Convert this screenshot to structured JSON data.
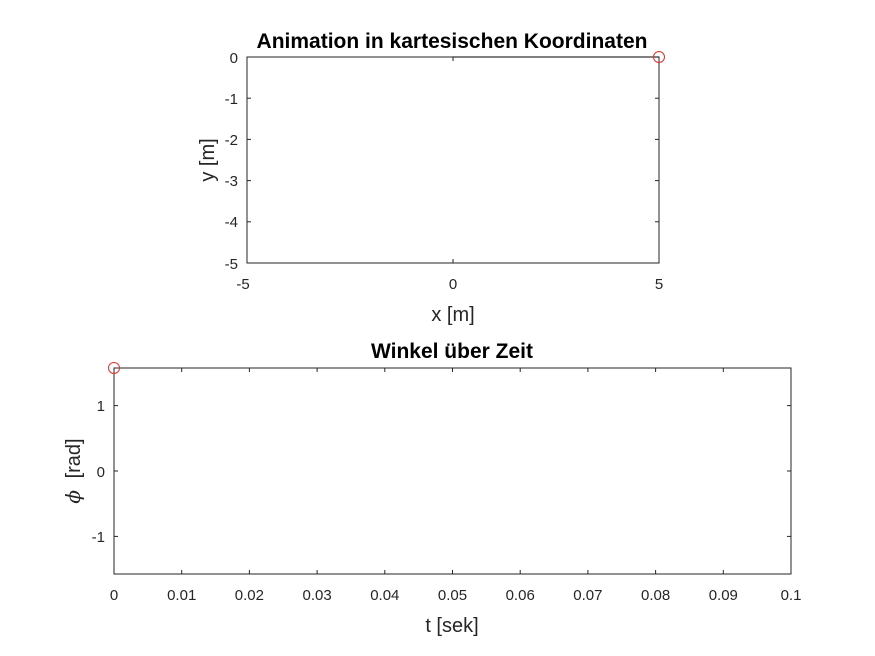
{
  "colors": {
    "marker": "#e0302c",
    "line": "#000000",
    "axis": "#262626",
    "background": "#ffffff"
  },
  "chart_data": [
    {
      "type": "line",
      "title": "Animation in kartesischen Koordinaten",
      "xlabel": "x [m]",
      "ylabel": "y [m]",
      "xlim": [
        -5,
        5
      ],
      "ylim": [
        -5,
        0
      ],
      "xticks": [
        "-5",
        "0",
        "5"
      ],
      "yticks": [
        "0",
        "-1",
        "-2",
        "-3",
        "-4",
        "-5"
      ],
      "grid": false,
      "series": [
        {
          "x": [
            0,
            5
          ],
          "y": [
            0,
            0
          ]
        }
      ],
      "markers": [
        {
          "x": 5,
          "y": 0,
          "style": "open-circle"
        }
      ]
    },
    {
      "type": "line",
      "title": "Winkel über Zeit",
      "xlabel": "t [sek]",
      "ylabel_symbol": "ϕ",
      "ylabel": "[rad]",
      "xlim": [
        0,
        0.1
      ],
      "ylim": [
        -1.57,
        1.57
      ],
      "xticks": [
        "0",
        "0.01",
        "0.02",
        "0.03",
        "0.04",
        "0.05",
        "0.06",
        "0.07",
        "0.08",
        "0.09",
        "0.1"
      ],
      "yticks": [
        "1",
        "0",
        "-1"
      ],
      "grid": false,
      "markers": [
        {
          "x": 0,
          "y": 1.5708,
          "style": "open-circle"
        }
      ]
    }
  ]
}
